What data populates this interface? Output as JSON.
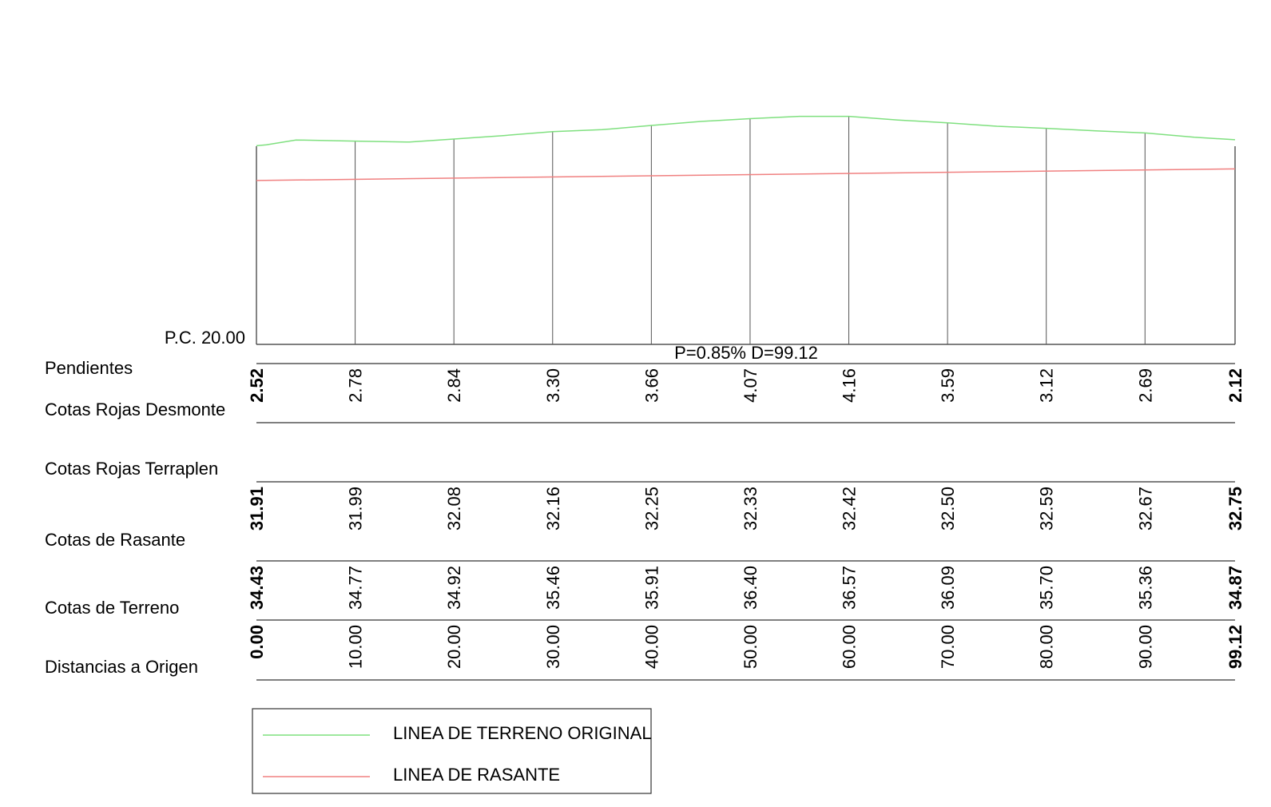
{
  "chart_data": {
    "type": "line",
    "reference_label": "P.C. 20.00",
    "slope_annotation": "P=0.85% D=99.12",
    "x": [
      0,
      10,
      20,
      30,
      40,
      50,
      60,
      70,
      80,
      90,
      99.12
    ],
    "x_labels": [
      "0.00",
      "10.00",
      "20.00",
      "30.00",
      "40.00",
      "50.00",
      "60.00",
      "70.00",
      "80.00",
      "90.00",
      "99.12"
    ],
    "terrain_profile": [
      {
        "x": 0,
        "y": 34.43
      },
      {
        "x": 1,
        "y": 34.5
      },
      {
        "x": 4,
        "y": 34.85
      },
      {
        "x": 10,
        "y": 34.77
      },
      {
        "x": 15.5,
        "y": 34.7
      },
      {
        "x": 20,
        "y": 34.92
      },
      {
        "x": 25,
        "y": 35.17
      },
      {
        "x": 30,
        "y": 35.46
      },
      {
        "x": 35,
        "y": 35.6
      },
      {
        "x": 40,
        "y": 35.91
      },
      {
        "x": 45,
        "y": 36.2
      },
      {
        "x": 50,
        "y": 36.4
      },
      {
        "x": 55,
        "y": 36.57
      },
      {
        "x": 60,
        "y": 36.57
      },
      {
        "x": 65,
        "y": 36.3
      },
      {
        "x": 70,
        "y": 36.09
      },
      {
        "x": 75,
        "y": 35.85
      },
      {
        "x": 80,
        "y": 35.7
      },
      {
        "x": 85,
        "y": 35.52
      },
      {
        "x": 90,
        "y": 35.36
      },
      {
        "x": 95,
        "y": 35.05
      },
      {
        "x": 99.12,
        "y": 34.87
      }
    ],
    "grade_line": [
      {
        "x": 0,
        "y": 31.91
      },
      {
        "x": 99.12,
        "y": 32.75
      }
    ],
    "series": [
      {
        "name": "LINEA DE TERRENO ORIGINAL",
        "color": "#7fe07f"
      },
      {
        "name": "LINEA DE RASANTE",
        "color": "#f08080"
      }
    ],
    "rows": {
      "pendientes": {
        "label": "Pendientes"
      },
      "desmonte": {
        "label": "Cotas Rojas Desmonte",
        "values": [
          "2.52",
          "2.78",
          "2.84",
          "3.30",
          "3.66",
          "4.07",
          "4.16",
          "3.59",
          "3.12",
          "2.69",
          "2.12"
        ]
      },
      "terraplen": {
        "label": "Cotas Rojas Terraplen",
        "values": []
      },
      "rasante": {
        "label": "Cotas de Rasante",
        "values": [
          "31.91",
          "31.99",
          "32.08",
          "32.16",
          "32.25",
          "32.33",
          "32.42",
          "32.50",
          "32.59",
          "32.67",
          "32.75"
        ]
      },
      "terreno": {
        "label": "Cotas de Terreno",
        "values": [
          "34.43",
          "34.77",
          "34.92",
          "35.46",
          "35.91",
          "36.40",
          "36.57",
          "36.09",
          "35.70",
          "35.36",
          "34.87"
        ]
      },
      "distancias": {
        "label": "Distancias a Origen"
      }
    },
    "legend": [
      {
        "label": "LINEA DE TERRENO ORIGINAL",
        "color": "#7fe07f"
      },
      {
        "label": "LINEA DE RASANTE",
        "color": "#f08080"
      }
    ]
  }
}
